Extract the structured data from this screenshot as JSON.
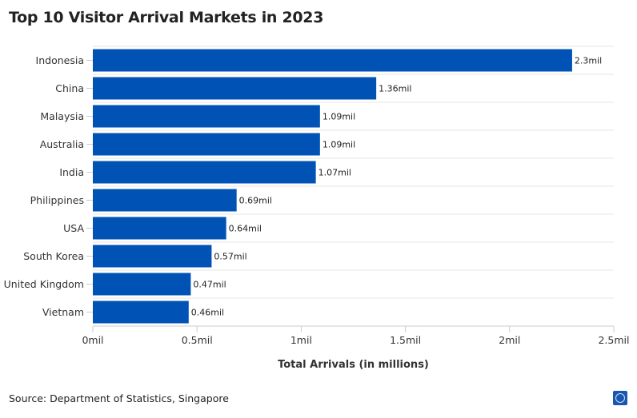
{
  "title": "Top 10 Visitor Arrival Markets in 2023",
  "source": "Source: Department of Statistics, Singapore",
  "colors": {
    "bar": "#0052b4",
    "grid": "#e6e6e6"
  },
  "chart_data": {
    "type": "bar",
    "orientation": "horizontal",
    "title": "Top 10 Visitor Arrival Markets in 2023",
    "xlabel": "Total Arrivals (in millions)",
    "ylabel": "",
    "categories": [
      "Indonesia",
      "China",
      "Malaysia",
      "Australia",
      "India",
      "Philippines",
      "USA",
      "South Korea",
      "United Kingdom",
      "Vietnam"
    ],
    "values": [
      2.3,
      1.36,
      1.09,
      1.09,
      1.07,
      0.69,
      0.64,
      0.57,
      0.47,
      0.46
    ],
    "data_labels": [
      "2.3mil",
      "1.36mil",
      "1.09mil",
      "1.09mil",
      "1.07mil",
      "0.69mil",
      "0.64mil",
      "0.57mil",
      "0.47mil",
      "0.46mil"
    ],
    "xlim": [
      0,
      2.5
    ],
    "xticks": [
      0,
      0.5,
      1,
      1.5,
      2,
      2.5
    ],
    "xtick_labels": [
      "0mil",
      "0.5mil",
      "1mil",
      "1.5mil",
      "2mil",
      "2.5mil"
    ],
    "grid": true,
    "legend": "none"
  }
}
